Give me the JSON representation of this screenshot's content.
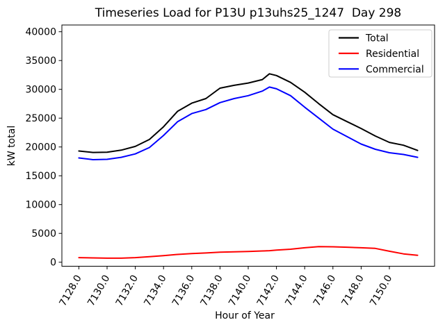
{
  "title": "Timeseries Load for P13U p13uhs25_1247  Day 298",
  "chart_data": {
    "type": "line",
    "title": "Timeseries Load for P13U p13uhs25_1247  Day 298",
    "xlabel": "Hour of Year",
    "ylabel": "kW total",
    "grid": false,
    "legend_position": "upper right",
    "xtick_rotation": 60,
    "xlim": [
      7126.8,
      7153.2
    ],
    "ylim": [
      -700,
      41200
    ],
    "xticks": [
      7128,
      7130,
      7132,
      7134,
      7136,
      7138,
      7140,
      7142,
      7144,
      7146,
      7148,
      7150
    ],
    "xtick_labels": [
      "7128.0",
      "7130.0",
      "7132.0",
      "7134.0",
      "7136.0",
      "7138.0",
      "7140.0",
      "7142.0",
      "7144.0",
      "7146.0",
      "7148.0",
      "7150.0"
    ],
    "yticks": [
      0,
      5000,
      10000,
      15000,
      20000,
      25000,
      30000,
      35000,
      40000
    ],
    "ytick_labels": [
      "0",
      "5000",
      "10000",
      "15000",
      "20000",
      "25000",
      "30000",
      "35000",
      "40000"
    ],
    "x": [
      7128,
      7129,
      7130,
      7131,
      7132,
      7133,
      7134,
      7135,
      7136,
      7137,
      7138,
      7139,
      7140,
      7141,
      7141.5,
      7142,
      7143,
      7144,
      7145,
      7146,
      7147,
      7148,
      7149,
      7150,
      7151,
      7152
    ],
    "series": [
      {
        "name": "Total",
        "color": "#000000",
        "values": [
          19300,
          19050,
          19100,
          19450,
          20100,
          21300,
          23500,
          26200,
          27600,
          28400,
          30200,
          30700,
          31100,
          31700,
          32700,
          32400,
          31200,
          29500,
          27500,
          25600,
          24400,
          23200,
          21900,
          20800,
          20300,
          19400
        ]
      },
      {
        "name": "Residential",
        "color": "#ff0000",
        "values": [
          800,
          750,
          700,
          700,
          800,
          950,
          1150,
          1350,
          1500,
          1600,
          1750,
          1800,
          1850,
          1950,
          2000,
          2100,
          2250,
          2500,
          2700,
          2680,
          2600,
          2500,
          2400,
          1900,
          1450,
          1200
        ]
      },
      {
        "name": "Commercial",
        "color": "#0000ff",
        "values": [
          18100,
          17800,
          17850,
          18200,
          18800,
          19900,
          22000,
          24400,
          25800,
          26500,
          27700,
          28400,
          28900,
          29700,
          30400,
          30100,
          28900,
          26900,
          25000,
          23100,
          21800,
          20500,
          19600,
          19000,
          18700,
          18200
        ]
      }
    ]
  }
}
